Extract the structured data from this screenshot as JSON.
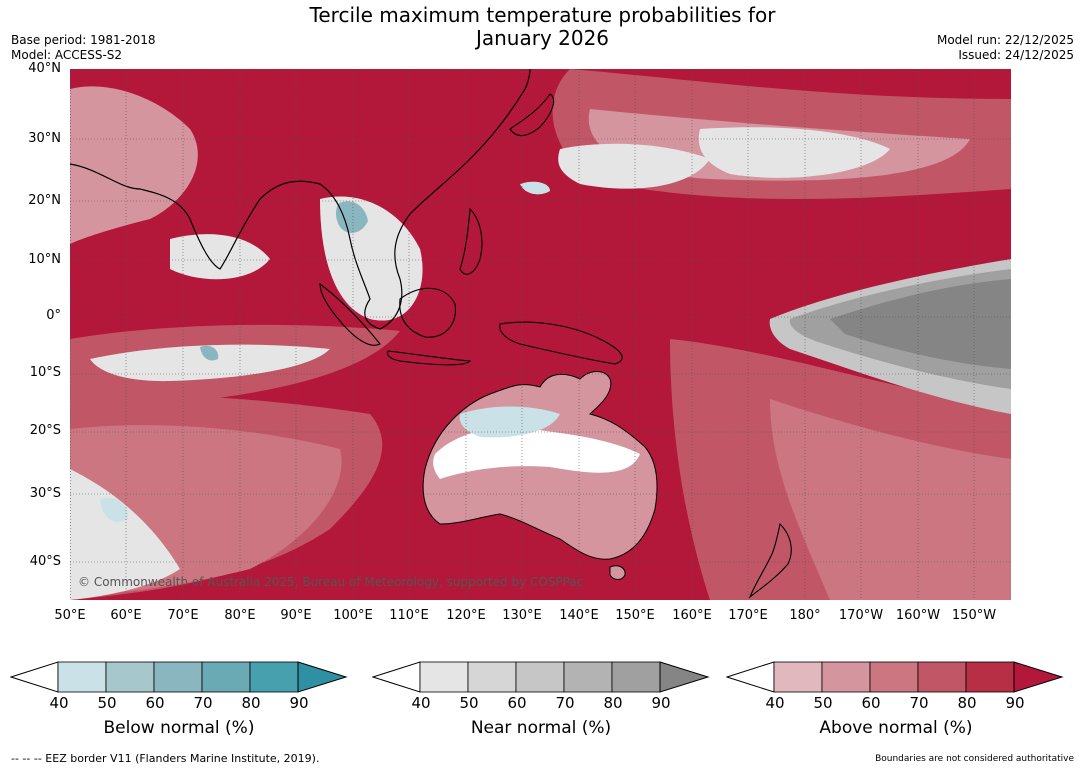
{
  "title_line1": "Tercile maximum temperature probabilities for",
  "title_line2": "January 2026",
  "meta": {
    "base_period": "Base period: 1981-2018",
    "model": "Model: ACCESS-S2",
    "model_run": "Model run: 22/12/2025",
    "issued": "Issued: 24/12/2025"
  },
  "copyright": "© Commonwealth of Australia 2025, Bureau of Meteorology, supported by COSPPac",
  "lat_labels": [
    "40°N",
    "30°N",
    "20°N",
    "10°N",
    "0°",
    "10°S",
    "20°S",
    "30°S",
    "40°S"
  ],
  "lon_labels": [
    "50°E",
    "60°E",
    "70°E",
    "80°E",
    "90°E",
    "100°E",
    "110°E",
    "120°E",
    "130°E",
    "140°E",
    "150°E",
    "160°E",
    "170°E",
    "180°",
    "170°W",
    "160°W",
    "150°W"
  ],
  "legend": {
    "below": {
      "label": "Below normal (%)",
      "colors": [
        "#c9e1e7",
        "#a6c7cc",
        "#8ab7bf",
        "#6aaab5",
        "#47a0ae",
        "#2e90a2"
      ]
    },
    "near": {
      "label": "Near normal (%)",
      "colors": [
        "#e5e5e5",
        "#d6d6d6",
        "#c6c6c6",
        "#b3b3b3",
        "#a0a0a0",
        "#858585"
      ]
    },
    "above": {
      "label": "Above normal (%)",
      "colors": [
        "#e0b8be",
        "#d4959e",
        "#cb7680",
        "#c15766",
        "#b72f44",
        "#b3173a"
      ]
    },
    "ticks": [
      "40",
      "50",
      "60",
      "70",
      "80",
      "90"
    ]
  },
  "footer": {
    "eez": "--  --  -- EEZ border V11 (Flanders Marine Institute, 2019).",
    "boundaries": "Boundaries are not considered authoritative"
  }
}
